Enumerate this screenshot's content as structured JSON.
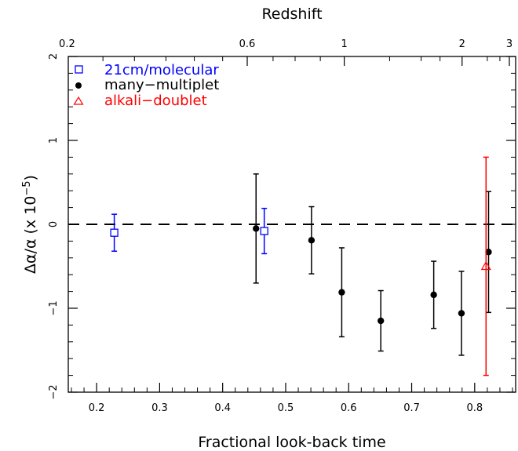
{
  "chart_data": {
    "type": "scatter",
    "xlabel": "Fractional look-back time",
    "ylabel": "Δα/α (x 10",
    "ylabel_exponent": "−5",
    "ylabel_close": ")",
    "top_axis_label": "Redshift",
    "xlim": [
      0.155,
      0.865
    ],
    "ylim": [
      -2.0,
      2.0
    ],
    "x_ticks": [
      "0.2",
      "0.3",
      "0.4",
      "0.5",
      "0.6",
      "0.7",
      "0.8"
    ],
    "y_ticks": [
      "2",
      "1",
      "0",
      "−1",
      "−2"
    ],
    "top_ticks": [
      {
        "label": "0.2",
        "x": 0.153
      },
      {
        "label": "0.6",
        "x": 0.439
      },
      {
        "label": "1",
        "x": 0.593
      },
      {
        "label": "2",
        "x": 0.78
      },
      {
        "label": "3",
        "x": 0.855
      }
    ],
    "reference_line": {
      "y": 0,
      "style": "dashed"
    },
    "grid": false,
    "legend_position": "top-left",
    "series": [
      {
        "name": "21cm/molecular",
        "color": "#0000ff",
        "marker": "square",
        "points": [
          {
            "x": 0.228,
            "y": -0.1,
            "err": 0.22
          },
          {
            "x": 0.466,
            "y": -0.08,
            "err": 0.27
          }
        ]
      },
      {
        "name": "many−multiplet",
        "color": "#000000",
        "marker": "filled-circle",
        "points": [
          {
            "x": 0.453,
            "y": -0.05,
            "err": 0.65
          },
          {
            "x": 0.541,
            "y": -0.19,
            "err": 0.4
          },
          {
            "x": 0.589,
            "y": -0.81,
            "err": 0.53
          },
          {
            "x": 0.651,
            "y": -1.15,
            "err": 0.36
          },
          {
            "x": 0.735,
            "y": -0.84,
            "err": 0.4
          },
          {
            "x": 0.779,
            "y": -1.06,
            "err": 0.5
          },
          {
            "x": 0.822,
            "y": -0.33,
            "err": 0.72
          }
        ]
      },
      {
        "name": "alkali−doublet",
        "color": "#ff0000",
        "marker": "open-triangle",
        "points": [
          {
            "x": 0.818,
            "y": -0.5,
            "err": 1.3
          }
        ]
      }
    ]
  }
}
